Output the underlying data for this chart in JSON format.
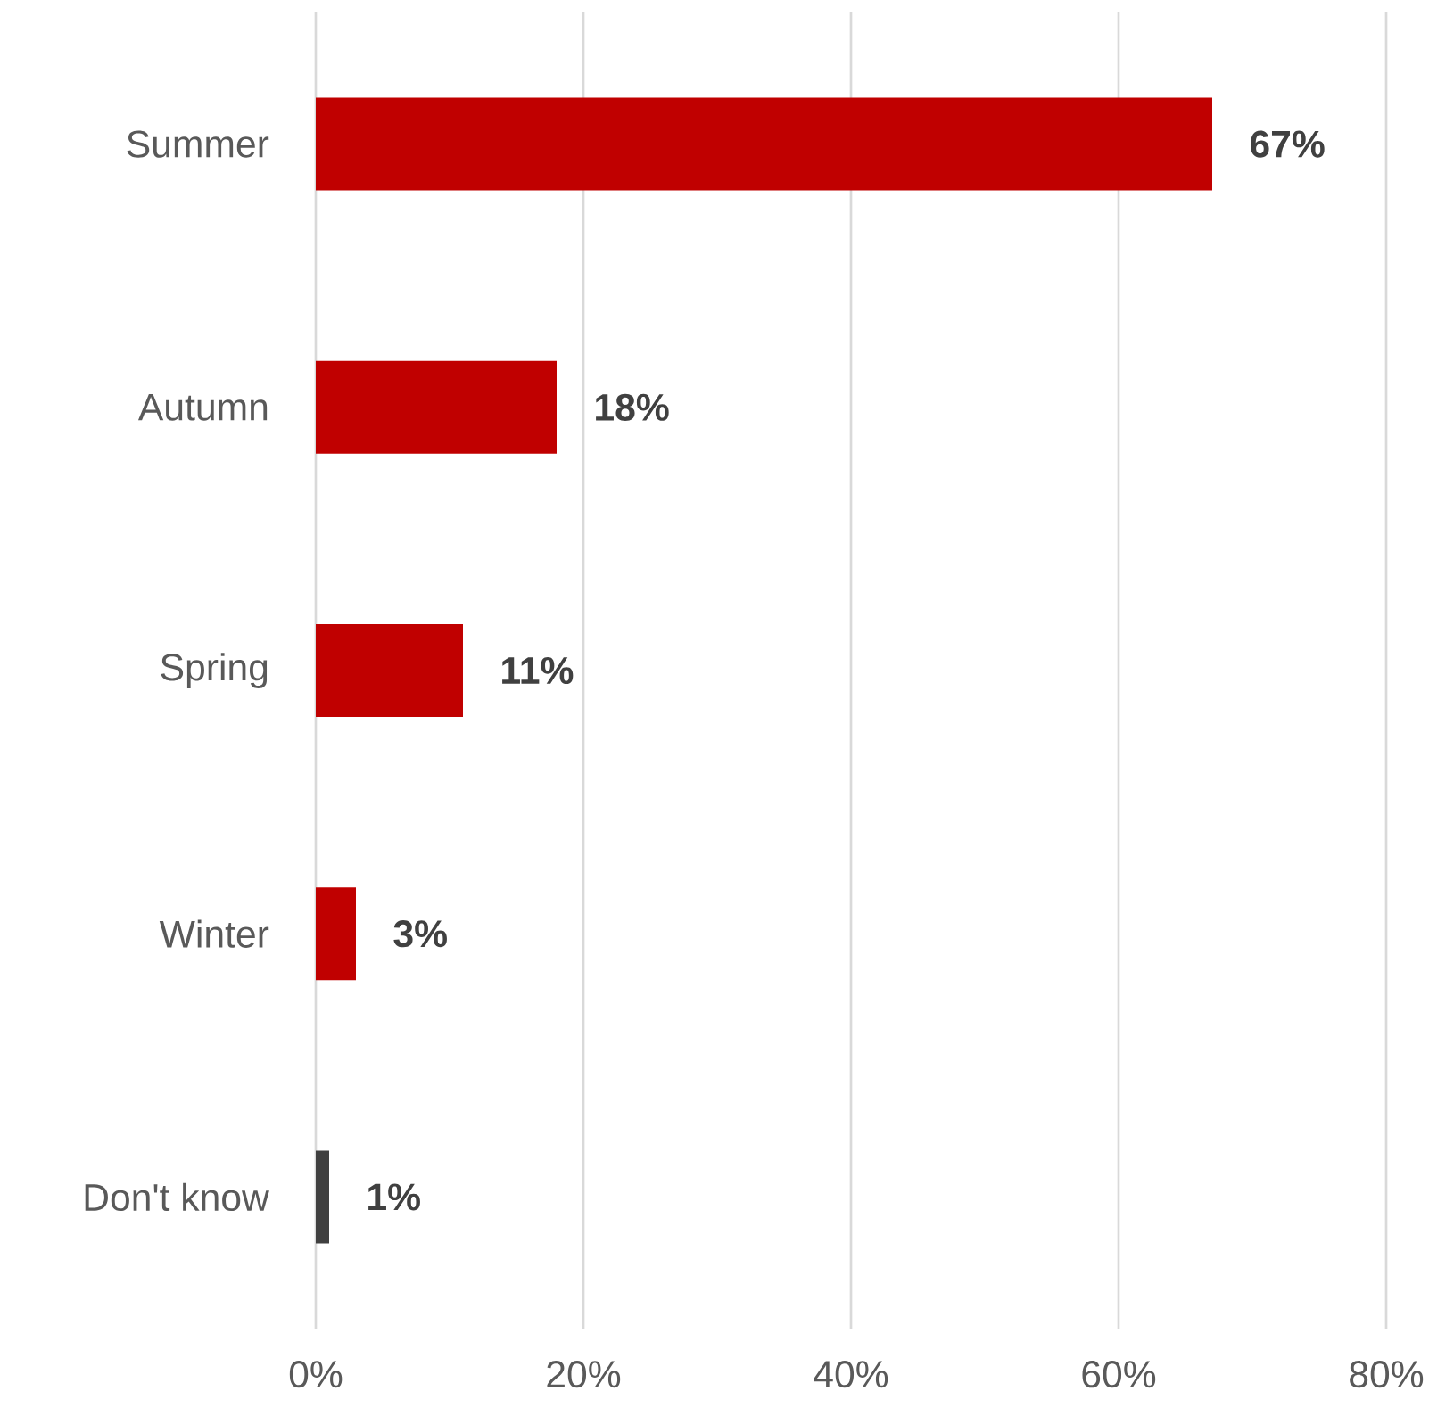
{
  "chart_data": {
    "type": "bar",
    "orientation": "horizontal",
    "categories": [
      "Summer",
      "Autumn",
      "Spring",
      "Winter",
      "Don't know"
    ],
    "values": [
      67,
      18,
      11,
      3,
      1
    ],
    "colors": [
      "#c00000",
      "#c00000",
      "#c00000",
      "#c00000",
      "#404040"
    ],
    "value_labels": [
      "67%",
      "18%",
      "11%",
      "3%",
      "1%"
    ],
    "xlim": [
      0,
      80
    ],
    "xticks": [
      {
        "value": 0,
        "label": "0%"
      },
      {
        "value": 20,
        "label": "20%"
      },
      {
        "value": 40,
        "label": "40%"
      },
      {
        "value": 60,
        "label": "60%"
      },
      {
        "value": 80,
        "label": "80%"
      }
    ],
    "grid": "x"
  }
}
